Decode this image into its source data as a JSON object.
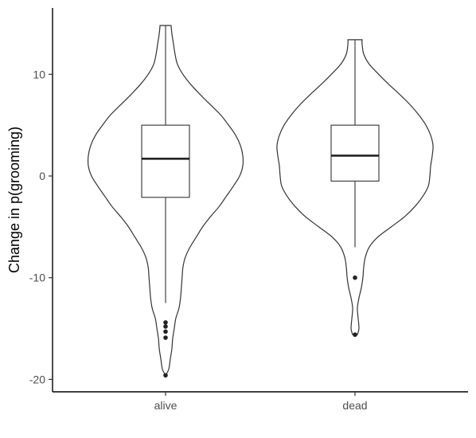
{
  "chart_data": {
    "type": "violin",
    "xlabel": "",
    "ylabel": "Change in p(grooming)",
    "ylim": [
      -21.2,
      16.5
    ],
    "y_ticks": [
      10,
      0,
      -10,
      -20
    ],
    "y_tick_labels": [
      "10",
      "0",
      "-10",
      "-20"
    ],
    "categories": [
      "alive",
      "dead"
    ],
    "grid": false,
    "legend": "none",
    "groups": [
      {
        "name": "alive",
        "violin_profile": [
          [
            -19.6,
            0.0
          ],
          [
            -19.0,
            0.04
          ],
          [
            -18.0,
            0.06
          ],
          [
            -17.0,
            0.08
          ],
          [
            -16.0,
            0.09
          ],
          [
            -15.0,
            0.11
          ],
          [
            -14.0,
            0.13
          ],
          [
            -13.0,
            0.17
          ],
          [
            -12.0,
            0.19
          ],
          [
            -11.0,
            0.2
          ],
          [
            -10.0,
            0.21
          ],
          [
            -9.0,
            0.22
          ],
          [
            -8.0,
            0.25
          ],
          [
            -7.0,
            0.31
          ],
          [
            -6.0,
            0.39
          ],
          [
            -5.0,
            0.47
          ],
          [
            -4.0,
            0.57
          ],
          [
            -3.0,
            0.68
          ],
          [
            -2.0,
            0.77
          ],
          [
            -1.0,
            0.86
          ],
          [
            0.0,
            0.94
          ],
          [
            1.0,
            0.98
          ],
          [
            2.0,
            0.98
          ],
          [
            3.0,
            0.95
          ],
          [
            4.0,
            0.89
          ],
          [
            5.0,
            0.8
          ],
          [
            6.0,
            0.7
          ],
          [
            7.0,
            0.57
          ],
          [
            8.0,
            0.44
          ],
          [
            9.0,
            0.32
          ],
          [
            10.0,
            0.22
          ],
          [
            11.0,
            0.15
          ],
          [
            12.0,
            0.12
          ],
          [
            13.0,
            0.1
          ],
          [
            14.0,
            0.08
          ],
          [
            14.8,
            0.07
          ]
        ],
        "q1": -2.1,
        "median": 1.7,
        "q3": 5.0,
        "whisker_low": -12.5,
        "whisker_high": 14.8,
        "outliers": [
          -14.4,
          -14.8,
          -15.3,
          -15.9,
          -19.6
        ]
      },
      {
        "name": "dead",
        "violin_profile": [
          [
            -15.6,
            0.03
          ],
          [
            -15.0,
            0.05
          ],
          [
            -14.0,
            0.04
          ],
          [
            -13.0,
            0.03
          ],
          [
            -12.0,
            0.05
          ],
          [
            -11.0,
            0.08
          ],
          [
            -10.0,
            0.1
          ],
          [
            -9.0,
            0.11
          ],
          [
            -8.0,
            0.13
          ],
          [
            -7.0,
            0.18
          ],
          [
            -6.0,
            0.29
          ],
          [
            -5.0,
            0.46
          ],
          [
            -4.0,
            0.63
          ],
          [
            -3.0,
            0.76
          ],
          [
            -2.0,
            0.86
          ],
          [
            -1.0,
            0.93
          ],
          [
            0.0,
            0.95
          ],
          [
            1.0,
            0.96
          ],
          [
            2.0,
            0.98
          ],
          [
            3.0,
            0.99
          ],
          [
            4.0,
            0.96
          ],
          [
            5.0,
            0.9
          ],
          [
            6.0,
            0.81
          ],
          [
            7.0,
            0.7
          ],
          [
            8.0,
            0.57
          ],
          [
            9.0,
            0.43
          ],
          [
            10.0,
            0.3
          ],
          [
            11.0,
            0.18
          ],
          [
            12.0,
            0.11
          ],
          [
            13.0,
            0.09
          ],
          [
            13.4,
            0.09
          ]
        ],
        "q1": -0.5,
        "median": 2.0,
        "q3": 5.0,
        "whisker_low": -7.0,
        "whisker_high": 13.4,
        "outliers": [
          -10.0,
          -15.6
        ]
      }
    ]
  }
}
